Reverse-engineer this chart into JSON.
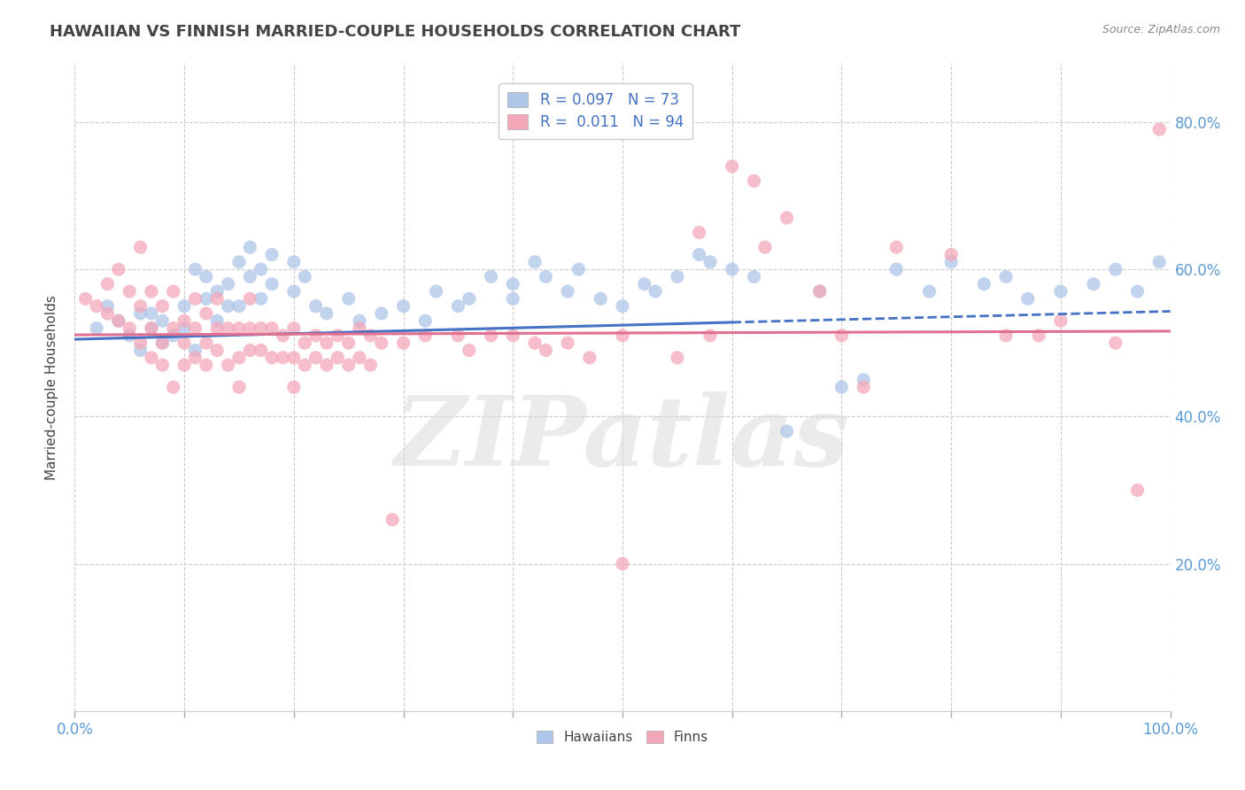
{
  "title": "HAWAIIAN VS FINNISH MARRIED-COUPLE HOUSEHOLDS CORRELATION CHART",
  "source": "Source: ZipAtlas.com",
  "ylabel": "Married-couple Households",
  "watermark": "ZIPatlas",
  "legend_items": [
    {
      "label": "Hawaiians",
      "R": 0.097,
      "N": 73,
      "color": "#aec6e8"
    },
    {
      "label": "Finns",
      "R": 0.011,
      "N": 94,
      "color": "#f4a7b9"
    }
  ],
  "hawaiian_points": [
    [
      0.02,
      0.52
    ],
    [
      0.03,
      0.55
    ],
    [
      0.04,
      0.53
    ],
    [
      0.05,
      0.51
    ],
    [
      0.06,
      0.54
    ],
    [
      0.06,
      0.49
    ],
    [
      0.07,
      0.52
    ],
    [
      0.07,
      0.54
    ],
    [
      0.08,
      0.5
    ],
    [
      0.08,
      0.53
    ],
    [
      0.09,
      0.51
    ],
    [
      0.1,
      0.52
    ],
    [
      0.1,
      0.55
    ],
    [
      0.11,
      0.49
    ],
    [
      0.11,
      0.6
    ],
    [
      0.12,
      0.56
    ],
    [
      0.12,
      0.59
    ],
    [
      0.13,
      0.53
    ],
    [
      0.13,
      0.57
    ],
    [
      0.14,
      0.55
    ],
    [
      0.14,
      0.58
    ],
    [
      0.15,
      0.55
    ],
    [
      0.15,
      0.61
    ],
    [
      0.16,
      0.59
    ],
    [
      0.16,
      0.63
    ],
    [
      0.17,
      0.56
    ],
    [
      0.17,
      0.6
    ],
    [
      0.18,
      0.58
    ],
    [
      0.18,
      0.62
    ],
    [
      0.2,
      0.57
    ],
    [
      0.2,
      0.61
    ],
    [
      0.21,
      0.59
    ],
    [
      0.22,
      0.55
    ],
    [
      0.23,
      0.54
    ],
    [
      0.25,
      0.56
    ],
    [
      0.26,
      0.53
    ],
    [
      0.28,
      0.54
    ],
    [
      0.3,
      0.55
    ],
    [
      0.32,
      0.53
    ],
    [
      0.33,
      0.57
    ],
    [
      0.35,
      0.55
    ],
    [
      0.36,
      0.56
    ],
    [
      0.38,
      0.59
    ],
    [
      0.4,
      0.58
    ],
    [
      0.4,
      0.56
    ],
    [
      0.42,
      0.61
    ],
    [
      0.43,
      0.59
    ],
    [
      0.45,
      0.57
    ],
    [
      0.46,
      0.6
    ],
    [
      0.48,
      0.56
    ],
    [
      0.5,
      0.55
    ],
    [
      0.52,
      0.58
    ],
    [
      0.53,
      0.57
    ],
    [
      0.55,
      0.59
    ],
    [
      0.57,
      0.62
    ],
    [
      0.58,
      0.61
    ],
    [
      0.6,
      0.6
    ],
    [
      0.62,
      0.59
    ],
    [
      0.65,
      0.38
    ],
    [
      0.68,
      0.57
    ],
    [
      0.7,
      0.44
    ],
    [
      0.72,
      0.45
    ],
    [
      0.75,
      0.6
    ],
    [
      0.78,
      0.57
    ],
    [
      0.8,
      0.61
    ],
    [
      0.83,
      0.58
    ],
    [
      0.85,
      0.59
    ],
    [
      0.87,
      0.56
    ],
    [
      0.9,
      0.57
    ],
    [
      0.93,
      0.58
    ],
    [
      0.95,
      0.6
    ],
    [
      0.97,
      0.57
    ],
    [
      0.99,
      0.61
    ]
  ],
  "finn_points": [
    [
      0.01,
      0.56
    ],
    [
      0.02,
      0.55
    ],
    [
      0.03,
      0.58
    ],
    [
      0.03,
      0.54
    ],
    [
      0.04,
      0.53
    ],
    [
      0.04,
      0.6
    ],
    [
      0.05,
      0.52
    ],
    [
      0.05,
      0.57
    ],
    [
      0.06,
      0.5
    ],
    [
      0.06,
      0.55
    ],
    [
      0.06,
      0.63
    ],
    [
      0.07,
      0.52
    ],
    [
      0.07,
      0.57
    ],
    [
      0.07,
      0.48
    ],
    [
      0.08,
      0.5
    ],
    [
      0.08,
      0.55
    ],
    [
      0.08,
      0.47
    ],
    [
      0.09,
      0.52
    ],
    [
      0.09,
      0.57
    ],
    [
      0.09,
      0.44
    ],
    [
      0.1,
      0.5
    ],
    [
      0.1,
      0.53
    ],
    [
      0.1,
      0.47
    ],
    [
      0.11,
      0.52
    ],
    [
      0.11,
      0.48
    ],
    [
      0.11,
      0.56
    ],
    [
      0.12,
      0.5
    ],
    [
      0.12,
      0.54
    ],
    [
      0.12,
      0.47
    ],
    [
      0.13,
      0.52
    ],
    [
      0.13,
      0.56
    ],
    [
      0.13,
      0.49
    ],
    [
      0.14,
      0.52
    ],
    [
      0.14,
      0.47
    ],
    [
      0.15,
      0.52
    ],
    [
      0.15,
      0.48
    ],
    [
      0.15,
      0.44
    ],
    [
      0.16,
      0.52
    ],
    [
      0.16,
      0.49
    ],
    [
      0.16,
      0.56
    ],
    [
      0.17,
      0.52
    ],
    [
      0.17,
      0.49
    ],
    [
      0.18,
      0.52
    ],
    [
      0.18,
      0.48
    ],
    [
      0.19,
      0.51
    ],
    [
      0.19,
      0.48
    ],
    [
      0.2,
      0.52
    ],
    [
      0.2,
      0.48
    ],
    [
      0.2,
      0.44
    ],
    [
      0.21,
      0.5
    ],
    [
      0.21,
      0.47
    ],
    [
      0.22,
      0.51
    ],
    [
      0.22,
      0.48
    ],
    [
      0.23,
      0.5
    ],
    [
      0.23,
      0.47
    ],
    [
      0.24,
      0.51
    ],
    [
      0.24,
      0.48
    ],
    [
      0.25,
      0.5
    ],
    [
      0.25,
      0.47
    ],
    [
      0.26,
      0.52
    ],
    [
      0.26,
      0.48
    ],
    [
      0.27,
      0.51
    ],
    [
      0.27,
      0.47
    ],
    [
      0.28,
      0.5
    ],
    [
      0.29,
      0.26
    ],
    [
      0.3,
      0.5
    ],
    [
      0.32,
      0.51
    ],
    [
      0.35,
      0.51
    ],
    [
      0.36,
      0.49
    ],
    [
      0.38,
      0.51
    ],
    [
      0.4,
      0.51
    ],
    [
      0.42,
      0.5
    ],
    [
      0.43,
      0.49
    ],
    [
      0.45,
      0.5
    ],
    [
      0.47,
      0.48
    ],
    [
      0.5,
      0.51
    ],
    [
      0.5,
      0.2
    ],
    [
      0.55,
      0.48
    ],
    [
      0.57,
      0.65
    ],
    [
      0.58,
      0.51
    ],
    [
      0.6,
      0.74
    ],
    [
      0.62,
      0.72
    ],
    [
      0.63,
      0.63
    ],
    [
      0.65,
      0.67
    ],
    [
      0.68,
      0.57
    ],
    [
      0.7,
      0.51
    ],
    [
      0.72,
      0.44
    ],
    [
      0.75,
      0.63
    ],
    [
      0.8,
      0.62
    ],
    [
      0.85,
      0.51
    ],
    [
      0.88,
      0.51
    ],
    [
      0.9,
      0.53
    ],
    [
      0.95,
      0.5
    ],
    [
      0.97,
      0.3
    ],
    [
      0.99,
      0.79
    ]
  ],
  "hawaiian_line_solid": {
    "x0": 0.0,
    "y0": 0.505,
    "x1": 0.6,
    "y1": 0.528
  },
  "hawaiian_line_dashed": {
    "x0": 0.6,
    "y0": 0.528,
    "x1": 1.0,
    "y1": 0.543
  },
  "finn_line": {
    "x0": 0.0,
    "y0": 0.511,
    "x1": 1.0,
    "y1": 0.516
  },
  "ylim": [
    0.0,
    0.88
  ],
  "xlim": [
    0.0,
    1.0
  ],
  "y_ticks": [
    0.2,
    0.4,
    0.6,
    0.8
  ],
  "x_tick_labels_show": [
    0.0,
    1.0
  ],
  "background_color": "#ffffff",
  "grid_color": "#cccccc",
  "title_color": "#444444",
  "axis_label_color": "#5b9bd5",
  "hawaiian_color": "#aec6e8",
  "finn_color": "#f4a7b9",
  "hawaiian_line_color": "#4472c4",
  "finn_line_color": "#e07090",
  "watermark_color": "#d8d8d8"
}
